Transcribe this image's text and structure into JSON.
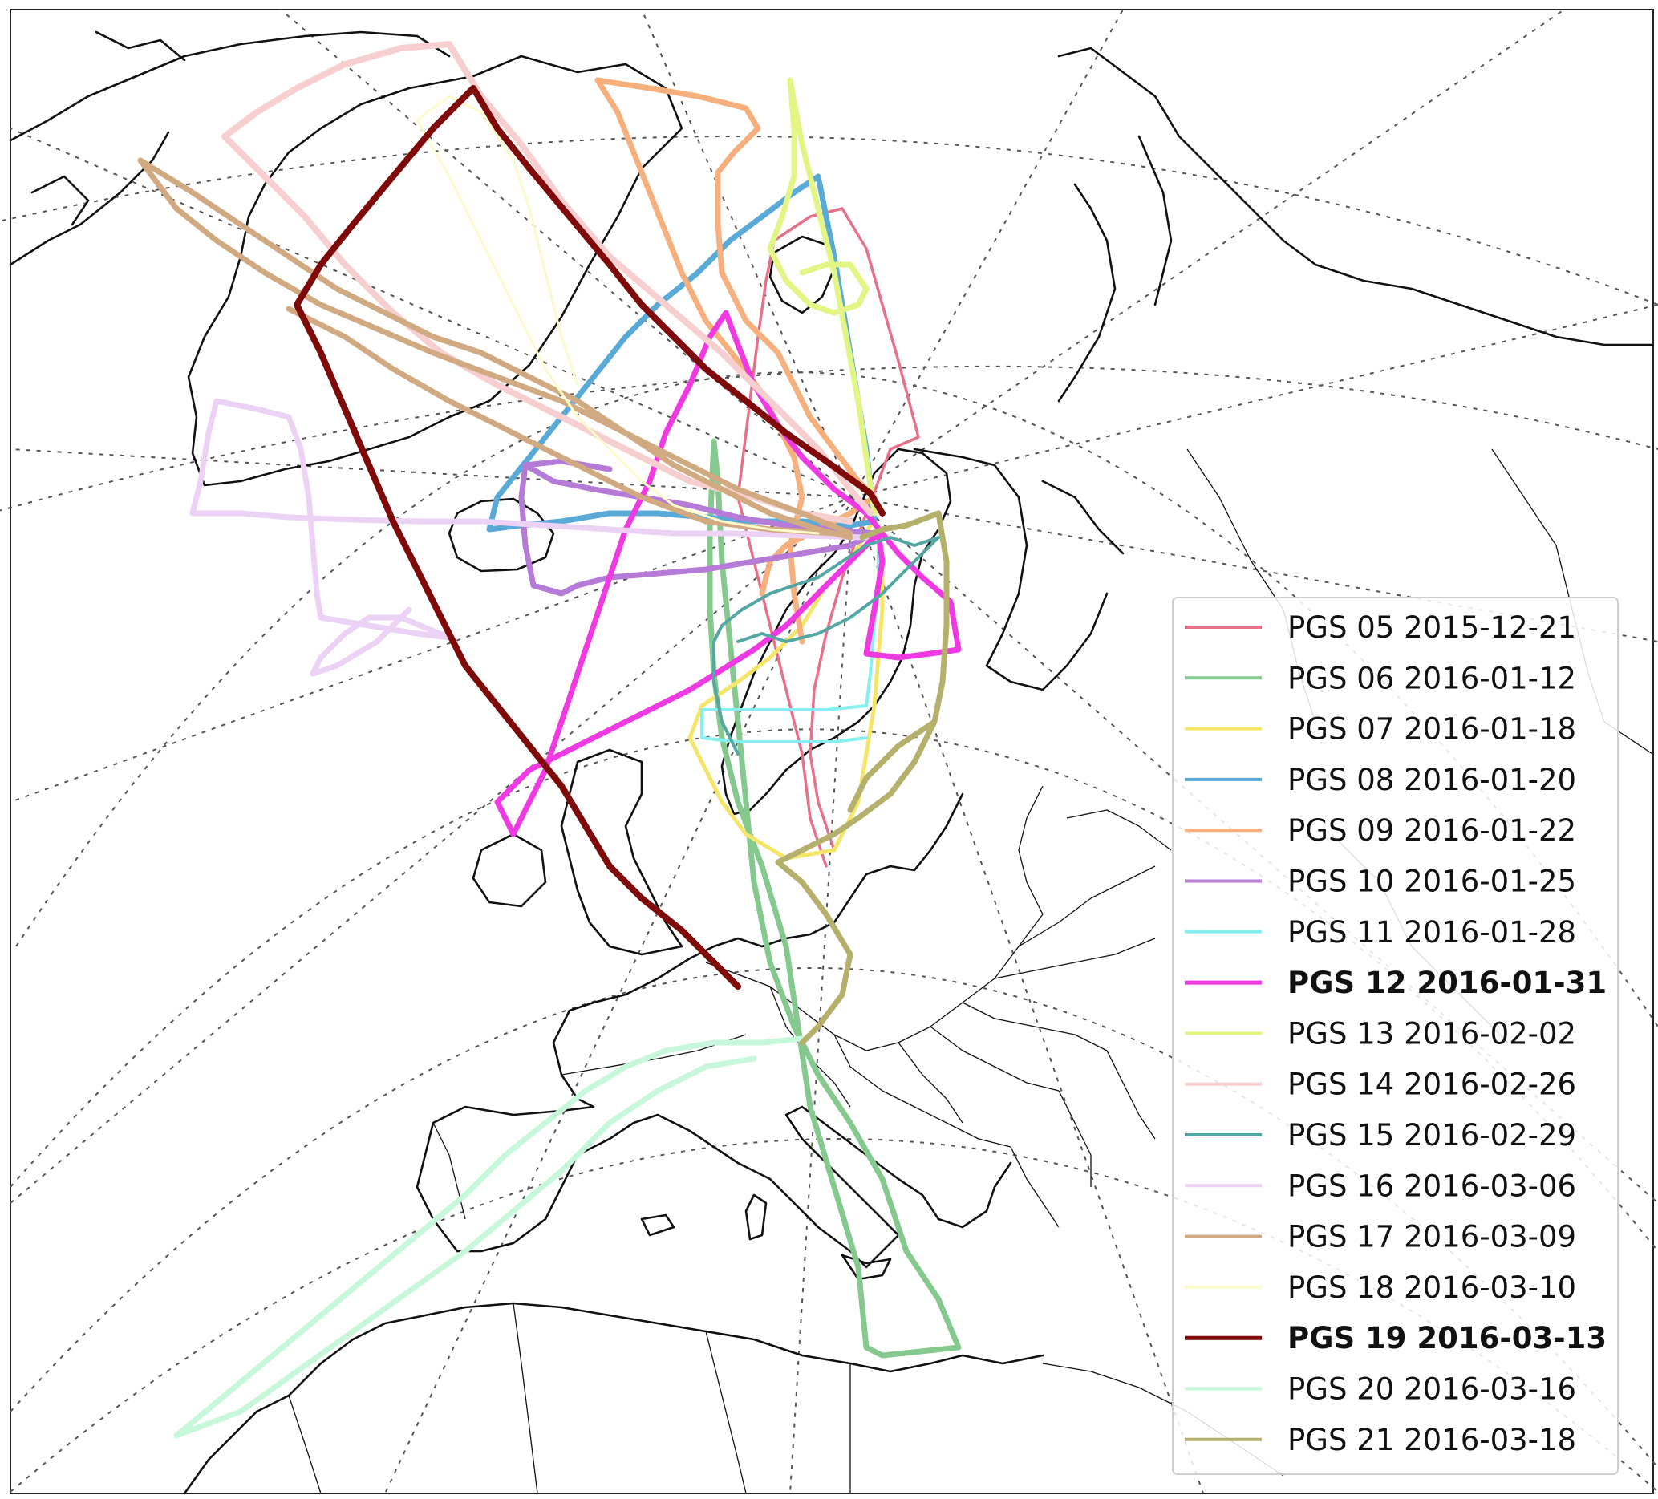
{
  "map": {
    "projection_note": "",
    "colors": {
      "coast": "#111111",
      "graticule": "#555555",
      "legend_frame": "#cfcfcf"
    }
  },
  "legend": {
    "entries": [
      {
        "id": "pgs05",
        "label": "PGS 05 2015-12-21",
        "color": "#e8718a",
        "bold": false
      },
      {
        "id": "pgs06",
        "label": "PGS 06 2016-01-12",
        "color": "#86c98f",
        "bold": false
      },
      {
        "id": "pgs07",
        "label": "PGS 07 2016-01-18",
        "color": "#f5e66a",
        "bold": false
      },
      {
        "id": "pgs08",
        "label": "PGS 08 2016-01-20",
        "color": "#5aaad8",
        "bold": false
      },
      {
        "id": "pgs09",
        "label": "PGS 09 2016-01-22",
        "color": "#f6b07d",
        "bold": false
      },
      {
        "id": "pgs10",
        "label": "PGS 10 2016-01-25",
        "color": "#b57bd6",
        "bold": false
      },
      {
        "id": "pgs11",
        "label": "PGS 11 2016-01-28",
        "color": "#86f0ef",
        "bold": false
      },
      {
        "id": "pgs12",
        "label": "PGS 12 2016-01-31",
        "color": "#ee3ae0",
        "bold": true
      },
      {
        "id": "pgs13",
        "label": "PGS 13 2016-02-02",
        "color": "#e3f585",
        "bold": false
      },
      {
        "id": "pgs14",
        "label": "PGS 14 2016-02-26",
        "color": "#f7cfd0",
        "bold": false
      },
      {
        "id": "pgs15",
        "label": "PGS 15 2016-02-29",
        "color": "#55a7a4",
        "bold": false
      },
      {
        "id": "pgs16",
        "label": "PGS 16 2016-03-06",
        "color": "#ecd2f5",
        "bold": false
      },
      {
        "id": "pgs17",
        "label": "PGS 17 2016-03-09",
        "color": "#d2aa82",
        "bold": false
      },
      {
        "id": "pgs18",
        "label": "PGS 18 2016-03-10",
        "color": "#fbfbcb",
        "bold": false
      },
      {
        "id": "pgs19",
        "label": "PGS 19 2016-03-13",
        "color": "#7e0a0a",
        "bold": true
      },
      {
        "id": "pgs20",
        "label": "PGS 20 2016-03-16",
        "color": "#c8f8dc",
        "bold": false
      },
      {
        "id": "pgs21",
        "label": "PGS 21 2016-03-18",
        "color": "#b5b06b",
        "bold": false
      }
    ]
  }
}
